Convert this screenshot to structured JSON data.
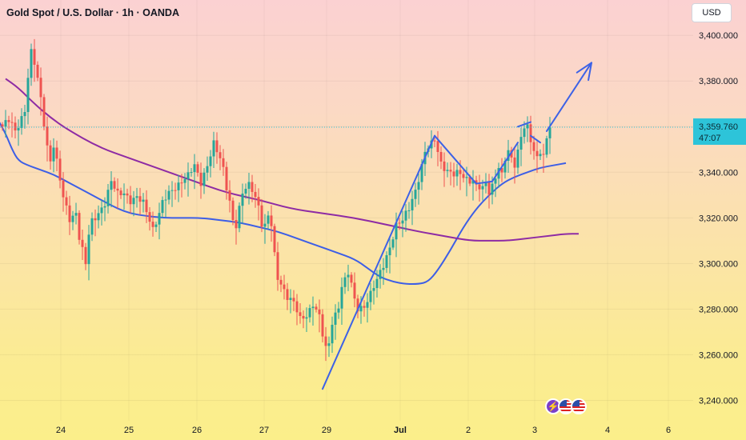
{
  "header": {
    "title": "Gold Spot / U.S. Dollar · 1h · OANDA",
    "currency": "USD"
  },
  "price_label": {
    "price": "3,359.760",
    "countdown": "47:07"
  },
  "colors": {
    "up": "#26a69a",
    "down": "#ef5350",
    "ma_short": "#3d5ee6",
    "ma_long": "#8e2ba4",
    "annotation": "#3d62e6",
    "price_label_bg": "#2dc4d9"
  },
  "chart_data": {
    "type": "candlestick",
    "title": "Gold Spot / U.S. Dollar · 1h · OANDA",
    "ylim": [
      3237,
      3412
    ],
    "y_ticks": [
      3400,
      3380,
      3360,
      3340,
      3320,
      3300,
      3280,
      3260,
      3240
    ],
    "y_tick_labels": [
      "3,400.000",
      "3,380.000",
      "3,360.000",
      "3,340.000",
      "3,320.000",
      "3,300.000",
      "3,280.000",
      "3,260.000",
      "3,240.000"
    ],
    "x_ticks": [
      {
        "label": "24",
        "bold": false
      },
      {
        "label": "25",
        "bold": false
      },
      {
        "label": "26",
        "bold": false
      },
      {
        "label": "27",
        "bold": false
      },
      {
        "label": "29",
        "bold": false
      },
      {
        "label": "Jul",
        "bold": true
      },
      {
        "label": "2",
        "bold": false
      },
      {
        "label": "3",
        "bold": false
      },
      {
        "label": "4",
        "bold": false
      },
      {
        "label": "6",
        "bold": false
      }
    ],
    "price_anchors": [
      [
        0,
        3360
      ],
      [
        2,
        3362
      ],
      [
        4,
        3358
      ],
      [
        7,
        3368
      ],
      [
        8,
        3382
      ],
      [
        9,
        3392
      ],
      [
        10,
        3387
      ],
      [
        11,
        3380
      ],
      [
        12,
        3372
      ],
      [
        13,
        3362
      ],
      [
        14,
        3352
      ],
      [
        15,
        3346
      ],
      [
        16,
        3352
      ],
      [
        17,
        3344
      ],
      [
        19,
        3328
      ],
      [
        21,
        3320
      ],
      [
        23,
        3323
      ],
      [
        24,
        3312
      ],
      [
        26,
        3299
      ],
      [
        27,
        3312
      ],
      [
        28,
        3318
      ],
      [
        30,
        3323
      ],
      [
        32,
        3327
      ],
      [
        34,
        3335
      ],
      [
        36,
        3330
      ],
      [
        38,
        3332
      ],
      [
        40,
        3328
      ],
      [
        42,
        3328
      ],
      [
        44,
        3326
      ],
      [
        46,
        3320
      ],
      [
        47,
        3316
      ],
      [
        49,
        3322
      ],
      [
        50,
        3326
      ],
      [
        52,
        3330
      ],
      [
        54,
        3334
      ],
      [
        56,
        3337
      ],
      [
        58,
        3338
      ],
      [
        60,
        3342
      ],
      [
        62,
        3336
      ],
      [
        63,
        3340
      ],
      [
        64,
        3344
      ],
      [
        66,
        3352
      ],
      [
        68,
        3345
      ],
      [
        69,
        3341
      ],
      [
        70,
        3334
      ],
      [
        71,
        3328
      ],
      [
        72,
        3320
      ],
      [
        73,
        3317
      ],
      [
        75,
        3330
      ],
      [
        77,
        3334
      ],
      [
        78,
        3333
      ],
      [
        79,
        3330
      ],
      [
        80,
        3326
      ],
      [
        81,
        3318
      ],
      [
        82,
        3316
      ],
      [
        83,
        3320
      ],
      [
        84,
        3316
      ],
      [
        85,
        3303
      ],
      [
        86,
        3294
      ],
      [
        87,
        3292
      ],
      [
        89,
        3286
      ],
      [
        91,
        3282
      ],
      [
        93,
        3275
      ],
      [
        95,
        3278
      ],
      [
        97,
        3283
      ],
      [
        99,
        3276
      ],
      [
        100,
        3268
      ],
      [
        101,
        3262
      ],
      [
        102,
        3265
      ],
      [
        103,
        3275
      ],
      [
        105,
        3282
      ],
      [
        106,
        3290
      ],
      [
        107,
        3292
      ],
      [
        108,
        3295
      ],
      [
        109,
        3290
      ],
      [
        110,
        3284
      ],
      [
        111,
        3281
      ],
      [
        113,
        3282
      ],
      [
        115,
        3286
      ],
      [
        117,
        3292
      ],
      [
        119,
        3300
      ],
      [
        121,
        3308
      ],
      [
        123,
        3316
      ],
      [
        125,
        3318
      ],
      [
        127,
        3325
      ],
      [
        129,
        3333
      ],
      [
        131,
        3342
      ],
      [
        132,
        3348
      ],
      [
        134,
        3352
      ],
      [
        135,
        3355
      ],
      [
        136,
        3350
      ],
      [
        137,
        3345
      ],
      [
        139,
        3340
      ],
      [
        141,
        3338
      ],
      [
        143,
        3340
      ],
      [
        145,
        3338
      ],
      [
        147,
        3336
      ],
      [
        148,
        3333
      ],
      [
        150,
        3332
      ],
      [
        151,
        3336
      ],
      [
        152,
        3332
      ],
      [
        153,
        3335
      ],
      [
        154,
        3339
      ],
      [
        155,
        3342
      ],
      [
        156,
        3338
      ],
      [
        157,
        3345
      ],
      [
        158,
        3348
      ],
      [
        159,
        3346
      ],
      [
        160,
        3344
      ],
      [
        161,
        3350
      ],
      [
        162,
        3357
      ],
      [
        163,
        3360
      ],
      [
        164,
        3359
      ],
      [
        165,
        3353
      ],
      [
        166,
        3348
      ],
      [
        167,
        3346
      ],
      [
        168,
        3350
      ],
      [
        169,
        3348
      ],
      [
        170,
        3356
      ],
      [
        171,
        3359.76
      ]
    ],
    "series": [
      {
        "kind": "ma_short",
        "points": [
          [
            -1,
            3362
          ],
          [
            1,
            3357
          ],
          [
            3,
            3350
          ],
          [
            5,
            3345
          ],
          [
            8,
            3343
          ],
          [
            12,
            3341
          ],
          [
            16,
            3339
          ],
          [
            20,
            3336
          ],
          [
            24,
            3333
          ],
          [
            28,
            3330
          ],
          [
            32,
            3327
          ],
          [
            36,
            3324
          ],
          [
            40,
            3322
          ],
          [
            44,
            3321
          ],
          [
            50,
            3320
          ],
          [
            56,
            3320
          ],
          [
            62,
            3320
          ],
          [
            68,
            3319
          ],
          [
            74,
            3318
          ],
          [
            80,
            3316
          ],
          [
            86,
            3314
          ],
          [
            92,
            3311
          ],
          [
            98,
            3308
          ],
          [
            104,
            3305
          ],
          [
            110,
            3302
          ],
          [
            114,
            3298
          ],
          [
            118,
            3294
          ],
          [
            122,
            3292
          ],
          [
            126,
            3291
          ],
          [
            130,
            3291
          ],
          [
            133,
            3292
          ],
          [
            136,
            3297
          ],
          [
            140,
            3306
          ],
          [
            144,
            3316
          ],
          [
            148,
            3324
          ],
          [
            152,
            3330
          ],
          [
            156,
            3335
          ],
          [
            160,
            3338
          ],
          [
            164,
            3340
          ],
          [
            168,
            3342
          ],
          [
            172,
            3343
          ],
          [
            176,
            3344
          ]
        ]
      },
      {
        "kind": "ma_long",
        "points": [
          [
            1,
            3381
          ],
          [
            5,
            3377
          ],
          [
            10,
            3370
          ],
          [
            15,
            3364
          ],
          [
            20,
            3359
          ],
          [
            30,
            3351
          ],
          [
            40,
            3346
          ],
          [
            50,
            3341
          ],
          [
            60,
            3336
          ],
          [
            70,
            3331
          ],
          [
            80,
            3328
          ],
          [
            90,
            3324
          ],
          [
            100,
            3322
          ],
          [
            110,
            3320
          ],
          [
            120,
            3317
          ],
          [
            130,
            3314
          ],
          [
            138,
            3312
          ],
          [
            146,
            3310
          ],
          [
            152,
            3310
          ],
          [
            158,
            3310
          ],
          [
            164,
            3311
          ],
          [
            170,
            3312
          ],
          [
            176,
            3313
          ],
          [
            180,
            3313
          ]
        ]
      }
    ],
    "annotations": [
      {
        "from": [
          100,
          3245
        ],
        "to": [
          135,
          3356
        ]
      },
      {
        "from": [
          135,
          3356
        ],
        "to": [
          148,
          3335
        ]
      },
      {
        "from": [
          148,
          3335
        ],
        "to": [
          153,
          3336
        ]
      },
      {
        "from": [
          153,
          3336
        ],
        "to": [
          161,
          3353
        ]
      },
      {
        "from": [
          161,
          3360
        ],
        "to": [
          165,
          3362
        ]
      },
      {
        "from": [
          165,
          3356
        ],
        "to": [
          168,
          3353
        ]
      },
      {
        "from": [
          170,
          3358
        ],
        "to": [
          184,
          3388
        ],
        "arrow": true
      }
    ]
  }
}
